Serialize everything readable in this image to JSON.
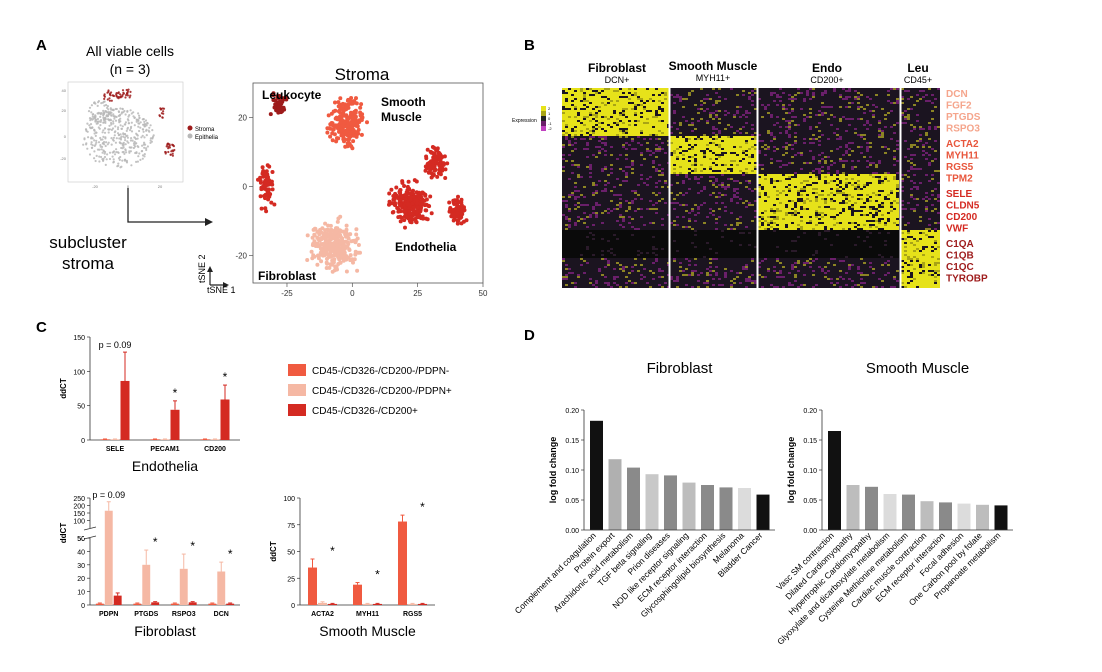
{
  "panel_letters": [
    "A",
    "B",
    "C",
    "D"
  ],
  "colors": {
    "stroma_dark": "#9e1b1b",
    "endothelia": "#d42a22",
    "smooth_muscle": "#f05a40",
    "fibroblast": "#f5b8a4",
    "epithelia_grey": "#b8b8b8",
    "bar_black": "#111111",
    "bar_grey_mid": "#8a8a8a",
    "bar_grey_light": "#bdbdbd",
    "bar_grey_lighter": "#dcdcdc",
    "heat_yellow": "#e6e21a",
    "heat_dark": "#1b1420",
    "heat_purple": "#6a1f6a"
  },
  "panel_a": {
    "title_line1": "All viable cells",
    "title_line2": "(n = 3)",
    "legend": [
      "Stroma",
      "Epithelia"
    ],
    "small_ticks_x": [
      "-20",
      "0",
      "20"
    ],
    "small_ticks_y": [
      "40",
      "20",
      "0",
      "-20"
    ],
    "arrow_label_line1": "subcluster",
    "arrow_label_line2": "stroma",
    "tsne_title": "Stroma",
    "cluster_labels": {
      "leukocyte": "Leukocyte",
      "smooth_line1": "Smooth",
      "smooth_line2": "Muscle",
      "endothelia": "Endothelia",
      "fibroblast": "Fibroblast"
    },
    "axis_x_ticks": [
      "-25",
      "0",
      "25",
      "50"
    ],
    "axis_y_ticks": [
      "20",
      "0",
      "-20"
    ],
    "axis_label_x": "tSNE 1",
    "axis_label_y": "tSNE 2"
  },
  "panel_b": {
    "groups": [
      {
        "name": "Fibroblast",
        "marker": "DCN+"
      },
      {
        "name": "Smooth Muscle",
        "marker": "MYH11+"
      },
      {
        "name": "Endo",
        "marker": "CD200+"
      },
      {
        "name": "Leu",
        "marker": "CD45+"
      }
    ],
    "legend_title": "Expression",
    "legend_ticks": [
      "2",
      "1",
      "0",
      "-1",
      "-2"
    ],
    "gene_groups": [
      {
        "genes": [
          "DCN",
          "FGF2",
          "PTGDS",
          "RSPO3"
        ],
        "color": "#f5a58c"
      },
      {
        "genes": [
          "ACTA2",
          "MYH11",
          "RGS5",
          "TPM2"
        ],
        "color": "#e8563c"
      },
      {
        "genes": [
          "SELE",
          "CLDN5",
          "CD200",
          "VWF"
        ],
        "color": "#d42a22"
      },
      {
        "genes": [
          "C1QA",
          "C1QB",
          "C1QC",
          "TYROBP"
        ],
        "color": "#9e1b1b"
      }
    ]
  },
  "panel_c_legend": [
    {
      "label": "CD45-/CD326-/CD200-/PDPN-",
      "color": "#f05a40"
    },
    {
      "label": "CD45-/CD326-/CD200-/PDPN+",
      "color": "#f5b8a4"
    },
    {
      "label": "CD45-/CD326-/CD200+",
      "color": "#d42a22"
    }
  ],
  "chart_data": [
    {
      "type": "bar",
      "title": "Endothelia",
      "ylabel": "ddCT",
      "ylim": [
        0,
        150
      ],
      "yticks": [
        "0",
        "50",
        "100",
        "150"
      ],
      "categories": [
        "SELE",
        "PECAM1",
        "CD200"
      ],
      "series": [
        {
          "name": "CD45-/CD326-/CD200-/PDPN-",
          "values": [
            1,
            1,
            1
          ],
          "errors": [
            0.5,
            0.5,
            0.5
          ]
        },
        {
          "name": "CD45-/CD326-/CD200-/PDPN+",
          "values": [
            1,
            1,
            1
          ],
          "errors": [
            0.5,
            0.5,
            0.5
          ]
        },
        {
          "name": "CD45-/CD326-/CD200+",
          "values": [
            86,
            44,
            59
          ],
          "errors": [
            42,
            13,
            21
          ]
        }
      ],
      "annotations": [
        {
          "category": "SELE",
          "text": "p = 0.09"
        },
        {
          "category": "PECAM1",
          "text": "*"
        },
        {
          "category": "CD200",
          "text": "*"
        }
      ]
    },
    {
      "type": "bar",
      "title": "Fibroblast",
      "ylabel": "ddCT",
      "ylim": [
        0,
        250
      ],
      "axis_break": [
        50,
        50
      ],
      "yticks_lower": [
        "0",
        "10",
        "20",
        "30",
        "40",
        "50"
      ],
      "yticks_upper": [
        "50",
        "100",
        "150",
        "200",
        "250"
      ],
      "categories": [
        "PDPN",
        "PTGDS",
        "RSPO3",
        "DCN"
      ],
      "series": [
        {
          "name": "CD45-/CD326-/CD200-/PDPN-",
          "values": [
            1,
            1,
            1,
            1
          ],
          "errors": [
            0.5,
            0.5,
            0.5,
            0.5
          ]
        },
        {
          "name": "CD45-/CD326-/CD200-/PDPN+",
          "values": [
            165,
            30,
            27,
            25
          ],
          "errors": [
            60,
            11,
            11,
            7
          ]
        },
        {
          "name": "CD45-/CD326-/CD200+",
          "values": [
            7,
            2,
            2,
            1
          ],
          "errors": [
            2,
            0.5,
            0.5,
            0.5
          ]
        }
      ],
      "annotations": [
        {
          "category": "PDPN",
          "text": "p = 0.09"
        },
        {
          "category": "PTGDS",
          "text": "*"
        },
        {
          "category": "RSPO3",
          "text": "*"
        },
        {
          "category": "DCN",
          "text": "*"
        }
      ]
    },
    {
      "type": "bar",
      "title": "Smooth Muscle",
      "ylabel": "ddCT",
      "ylim": [
        0,
        100
      ],
      "yticks": [
        "0",
        "25",
        "50",
        "75",
        "100"
      ],
      "categories": [
        "ACTA2",
        "MYH11",
        "RGS5"
      ],
      "series": [
        {
          "name": "CD45-/CD326-/CD200-/PDPN-",
          "values": [
            35,
            19,
            78
          ],
          "errors": [
            8,
            2,
            6
          ]
        },
        {
          "name": "CD45-/CD326-/CD200-/PDPN+",
          "values": [
            2,
            1,
            1
          ],
          "errors": [
            1,
            0.5,
            0.5
          ]
        },
        {
          "name": "CD45-/CD326-/CD200+",
          "values": [
            1,
            1,
            1
          ],
          "errors": [
            0.5,
            0.5,
            0.5
          ]
        }
      ],
      "annotations": [
        {
          "category": "ACTA2",
          "text": "*"
        },
        {
          "category": "MYH11",
          "text": "*"
        },
        {
          "category": "RGS5",
          "text": "*"
        }
      ]
    },
    {
      "type": "bar",
      "title": "Fibroblast",
      "ylabel": "log fold change",
      "ylim": [
        0,
        0.2
      ],
      "yticks": [
        "0.00",
        "0.05",
        "0.10",
        "0.15",
        "0.20"
      ],
      "categories": [
        "Complement and coagulation",
        "Protein export",
        "Arachidonic acid metabolism",
        "TGF beta signaling",
        "Prion diseases",
        "NOD like receptor signaling",
        "ECM receptor interaction",
        "Glycosphingolipid biosynthesis",
        "Melanoma",
        "Bladder Cancer"
      ],
      "values": [
        0.182,
        0.118,
        0.104,
        0.093,
        0.091,
        0.079,
        0.075,
        0.071,
        0.07,
        0.059
      ],
      "bar_colors": [
        "#111111",
        "#b0b0b0",
        "#8a8a8a",
        "#c8c8c8",
        "#8a8a8a",
        "#bdbdbd",
        "#8a8a8a",
        "#8a8a8a",
        "#dcdcdc",
        "#111111"
      ]
    },
    {
      "type": "bar",
      "title": "Smooth Muscle",
      "ylabel": "log fold change",
      "ylim": [
        0,
        0.2
      ],
      "yticks": [
        "0.00",
        "0.05",
        "0.10",
        "0.15",
        "0.20"
      ],
      "categories": [
        "Vasc SM contraction",
        "Dilated Cardiomyopathy",
        "Hypertrophic Cardiomyopathy",
        "Glyoxylate and dicarboxylate metabolism",
        "Cysteine Methionine metabolism",
        "Cardiac muscle contraction",
        "ECM receptor interaction",
        "Focal adhesion",
        "One Carbon pool by folate",
        "Propanoate metabolism"
      ],
      "values": [
        0.165,
        0.075,
        0.072,
        0.06,
        0.059,
        0.048,
        0.046,
        0.044,
        0.042,
        0.041
      ],
      "bar_colors": [
        "#111111",
        "#bdbdbd",
        "#8a8a8a",
        "#dcdcdc",
        "#8a8a8a",
        "#bdbdbd",
        "#8a8a8a",
        "#dcdcdc",
        "#bdbdbd",
        "#111111"
      ]
    }
  ]
}
